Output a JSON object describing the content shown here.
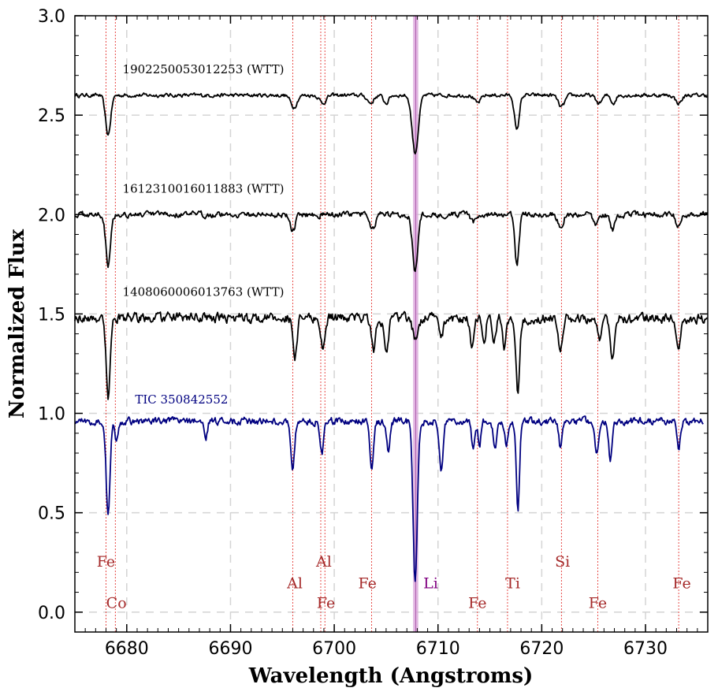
{
  "chart_data": {
    "type": "line",
    "title": "",
    "xlabel": "Wavelength (Angstroms)",
    "ylabel": "Normalized Flux",
    "xlim": [
      6675,
      6736
    ],
    "ylim": [
      -0.1,
      3.0
    ],
    "grid": true,
    "x_ticks": [
      6680,
      6690,
      6700,
      6710,
      6720,
      6730
    ],
    "x_tick_labels": [
      "6680",
      "6690",
      "6700",
      "6710",
      "6720",
      "6730"
    ],
    "y_ticks": [
      0.0,
      0.5,
      1.0,
      1.5,
      2.0,
      2.5,
      3.0
    ],
    "y_tick_labels": [
      "0.0",
      "0.5",
      "1.0",
      "1.5",
      "2.0",
      "2.5",
      "3.0"
    ],
    "li_band": [
      6707.6,
      6708.1
    ],
    "line_positions": [
      6678.0,
      6678.9,
      6696.0,
      6698.7,
      6699.1,
      6703.6,
      6713.8,
      6716.7,
      6721.9,
      6725.4,
      6733.2
    ],
    "line_labels": [
      {
        "text": "Fe",
        "x": 6678.0,
        "y": 0.23,
        "color": "#a52a2a"
      },
      {
        "text": "Co",
        "x": 6679.0,
        "y": 0.02,
        "color": "#a52a2a"
      },
      {
        "text": "Al",
        "x": 6696.2,
        "y": 0.12,
        "color": "#a52a2a"
      },
      {
        "text": "Al",
        "x": 6699.0,
        "y": 0.23,
        "color": "#a52a2a"
      },
      {
        "text": "Fe",
        "x": 6699.2,
        "y": 0.02,
        "color": "#a52a2a"
      },
      {
        "text": "Fe",
        "x": 6703.2,
        "y": 0.12,
        "color": "#a52a2a"
      },
      {
        "text": "Li",
        "x": 6709.3,
        "y": 0.12,
        "color": "#800080"
      },
      {
        "text": "Fe",
        "x": 6713.8,
        "y": 0.02,
        "color": "#a52a2a"
      },
      {
        "text": "Ti",
        "x": 6717.2,
        "y": 0.12,
        "color": "#a52a2a"
      },
      {
        "text": "Si",
        "x": 6722.0,
        "y": 0.23,
        "color": "#a52a2a"
      },
      {
        "text": "Fe",
        "x": 6725.4,
        "y": 0.02,
        "color": "#a52a2a"
      },
      {
        "text": "Fe",
        "x": 6733.5,
        "y": 0.12,
        "color": "#a52a2a"
      }
    ],
    "series": [
      {
        "name": "1902250053012253 (WTT)",
        "label_pos": [
          6679.6,
          2.71
        ],
        "color": "#000000",
        "continuum": 2.6,
        "noise": 0.008,
        "lines": [
          [
            6678.2,
            0.2,
            0.25
          ],
          [
            6696.1,
            0.06,
            0.3
          ],
          [
            6698.9,
            0.04,
            0.3
          ],
          [
            6703.5,
            0.04,
            0.3
          ],
          [
            6705.0,
            0.04,
            0.25
          ],
          [
            6707.8,
            0.29,
            0.3
          ],
          [
            6713.8,
            0.04,
            0.3
          ],
          [
            6717.6,
            0.18,
            0.22
          ],
          [
            6721.9,
            0.06,
            0.3
          ],
          [
            6725.5,
            0.04,
            0.3
          ],
          [
            6726.9,
            0.04,
            0.22
          ],
          [
            6733.2,
            0.04,
            0.3
          ]
        ]
      },
      {
        "name": "1612310016011883 (WTT)",
        "label_pos": [
          6679.6,
          2.11
        ],
        "color": "#000000",
        "continuum": 2.0,
        "noise": 0.012,
        "lines": [
          [
            6678.2,
            0.25,
            0.22
          ],
          [
            6696.0,
            0.08,
            0.25
          ],
          [
            6703.7,
            0.07,
            0.25
          ],
          [
            6707.8,
            0.28,
            0.25
          ],
          [
            6713.4,
            0.04,
            0.25
          ],
          [
            6717.6,
            0.25,
            0.2
          ],
          [
            6721.8,
            0.07,
            0.25
          ],
          [
            6725.2,
            0.05,
            0.25
          ],
          [
            6726.8,
            0.08,
            0.22
          ],
          [
            6733.2,
            0.06,
            0.25
          ]
        ]
      },
      {
        "name": "1408060006013763 (WTT)",
        "label_pos": [
          6679.6,
          1.59
        ],
        "color": "#000000",
        "continuum": 1.48,
        "noise": 0.02,
        "lines": [
          [
            6678.2,
            0.42,
            0.18
          ],
          [
            6696.2,
            0.21,
            0.2
          ],
          [
            6698.9,
            0.15,
            0.2
          ],
          [
            6703.8,
            0.17,
            0.2
          ],
          [
            6705.0,
            0.18,
            0.2
          ],
          [
            6707.8,
            0.1,
            0.25
          ],
          [
            6710.3,
            0.1,
            0.2
          ],
          [
            6713.3,
            0.16,
            0.2
          ],
          [
            6714.4,
            0.12,
            0.18
          ],
          [
            6715.4,
            0.13,
            0.18
          ],
          [
            6716.4,
            0.14,
            0.18
          ],
          [
            6717.7,
            0.37,
            0.18
          ],
          [
            6721.8,
            0.18,
            0.2
          ],
          [
            6725.6,
            0.12,
            0.2
          ],
          [
            6726.8,
            0.21,
            0.18
          ],
          [
            6733.2,
            0.15,
            0.2
          ]
        ]
      },
      {
        "name": "TIC 350842552",
        "label_pos": [
          6680.8,
          1.05
        ],
        "color": "#000080",
        "continuum": 0.96,
        "noise": 0.015,
        "lines": [
          [
            6678.2,
            0.48,
            0.18
          ],
          [
            6679.0,
            0.12,
            0.15
          ],
          [
            6687.6,
            0.09,
            0.15
          ],
          [
            6696.0,
            0.24,
            0.18
          ],
          [
            6698.8,
            0.17,
            0.18
          ],
          [
            6703.6,
            0.23,
            0.18
          ],
          [
            6705.2,
            0.14,
            0.16
          ],
          [
            6707.8,
            0.81,
            0.2
          ],
          [
            6710.3,
            0.25,
            0.18
          ],
          [
            6713.4,
            0.15,
            0.16
          ],
          [
            6714.0,
            0.12,
            0.14
          ],
          [
            6715.5,
            0.15,
            0.16
          ],
          [
            6716.6,
            0.12,
            0.15
          ],
          [
            6717.7,
            0.44,
            0.16
          ],
          [
            6721.8,
            0.13,
            0.16
          ],
          [
            6725.3,
            0.16,
            0.16
          ],
          [
            6726.6,
            0.19,
            0.16
          ],
          [
            6733.2,
            0.13,
            0.16
          ]
        ]
      }
    ]
  }
}
